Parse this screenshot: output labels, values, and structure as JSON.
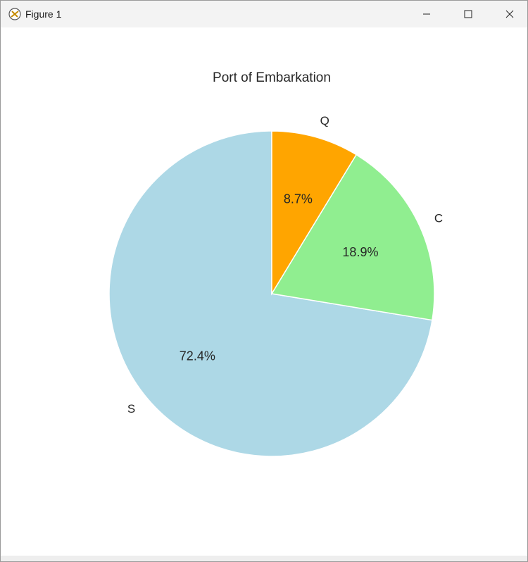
{
  "window": {
    "title": "Figure 1"
  },
  "chart_data": {
    "type": "pie",
    "title": "Port of Embarkation",
    "categories": [
      "S",
      "C",
      "Q"
    ],
    "values": [
      72.4,
      18.9,
      8.7
    ],
    "value_labels": [
      "72.4%",
      "18.9%",
      "8.7%"
    ],
    "colors": [
      "#add8e6",
      "#90ee90",
      "#ffa500"
    ],
    "startangle": 90,
    "counterclock": true
  }
}
